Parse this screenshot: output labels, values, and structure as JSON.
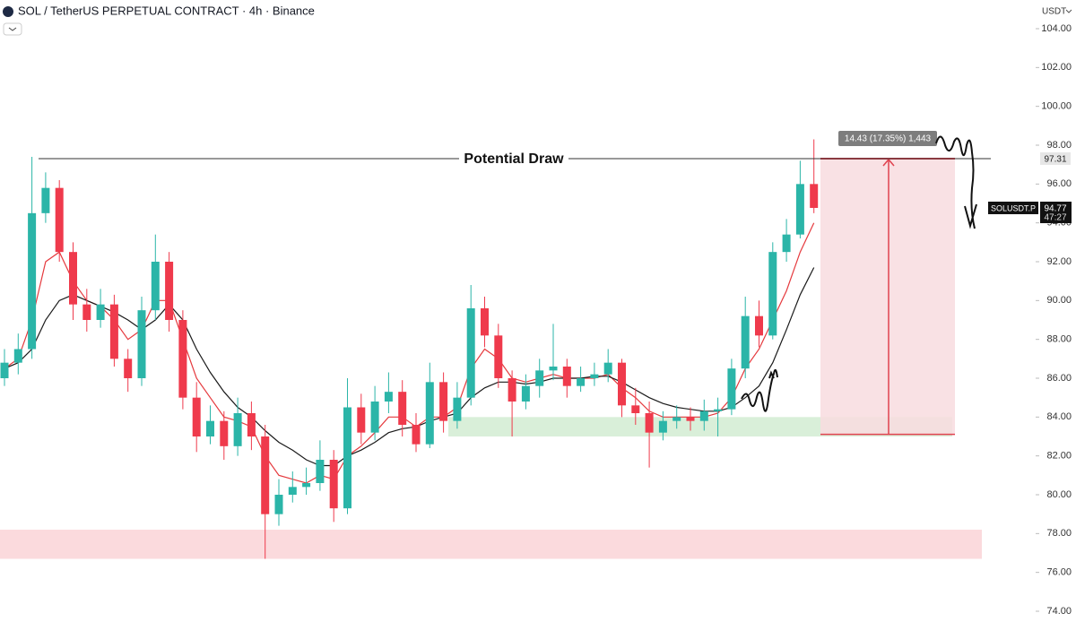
{
  "header": {
    "title": "SOL / TetherUS PERPETUAL CONTRACT · 4h · Binance",
    "currency": "USDT"
  },
  "chart_data": {
    "type": "candlestick",
    "up_color": "#2bb5a8",
    "down_color": "#ef3a4c",
    "ylim": [
      74,
      104
    ],
    "yticks": [
      {
        "value": 104,
        "label": "104.00"
      },
      {
        "value": 102,
        "label": "102.00"
      },
      {
        "value": 100,
        "label": "100.00"
      },
      {
        "value": 98,
        "label": "98.00"
      },
      {
        "value": 96,
        "label": "96.00"
      },
      {
        "value": 94,
        "label": "94.00"
      },
      {
        "value": 92,
        "label": "92.00"
      },
      {
        "value": 90,
        "label": "90.00"
      },
      {
        "value": 88,
        "label": "88.00"
      },
      {
        "value": 86,
        "label": "86.00"
      },
      {
        "value": 84,
        "label": "84.00"
      },
      {
        "value": 82,
        "label": "82.00"
      },
      {
        "value": 80,
        "label": "80.00"
      },
      {
        "value": 78,
        "label": "78.00"
      },
      {
        "value": 76,
        "label": "76.00"
      },
      {
        "value": 74,
        "label": "74.00"
      }
    ],
    "open": [
      86.0,
      86.8,
      87.5,
      94.5,
      95.8,
      92.5,
      89.8,
      89.0,
      89.8,
      87.0,
      86.0,
      89.5,
      92.0,
      89.0,
      85.0,
      83.0,
      83.8,
      82.5,
      84.2,
      83.0,
      79.0,
      80.0,
      80.4,
      80.6,
      81.8,
      79.3,
      84.5,
      83.2,
      84.8,
      85.3,
      83.6,
      82.6,
      85.8,
      83.8,
      85.0,
      89.6,
      88.2,
      86.0,
      84.8,
      85.6,
      86.4,
      86.6,
      85.6,
      86.0,
      86.2,
      86.8,
      84.6,
      84.2,
      83.2,
      83.8,
      84.0,
      83.8,
      84.3,
      84.4,
      86.5,
      89.2,
      88.2,
      92.5,
      93.4,
      96.0
    ],
    "high": [
      87.5,
      88.3,
      97.4,
      96.6,
      96.2,
      93.0,
      90.6,
      90.6,
      90.3,
      87.5,
      90.2,
      93.4,
      92.5,
      89.5,
      85.8,
      84.6,
      84.3,
      85.0,
      84.8,
      83.6,
      80.8,
      81.2,
      81.4,
      82.8,
      82.3,
      86.0,
      85.2,
      85.6,
      86.3,
      85.9,
      84.2,
      86.8,
      86.3,
      85.8,
      90.8,
      90.2,
      88.8,
      86.4,
      86.2,
      87.0,
      88.8,
      87.0,
      86.6,
      86.8,
      87.5,
      87.0,
      85.5,
      84.8,
      84.3,
      84.6,
      84.5,
      84.9,
      85.0,
      87.0,
      90.2,
      90.0,
      93.0,
      94.2,
      97.2,
      98.3
    ],
    "low": [
      85.6,
      86.2,
      87.0,
      94.0,
      92.0,
      89.0,
      88.4,
      88.6,
      86.6,
      85.3,
      85.6,
      89.0,
      88.4,
      84.4,
      82.2,
      82.6,
      81.8,
      82.0,
      82.3,
      76.7,
      78.4,
      79.6,
      80.0,
      80.2,
      78.6,
      79.0,
      82.6,
      82.8,
      84.2,
      83.0,
      82.2,
      82.4,
      83.2,
      83.4,
      84.6,
      87.6,
      85.5,
      83.0,
      84.4,
      85.0,
      85.9,
      85.0,
      85.3,
      85.6,
      85.8,
      84.0,
      83.6,
      81.4,
      82.8,
      83.4,
      83.3,
      83.3,
      83.0,
      84.1,
      86.0,
      87.6,
      88.0,
      92.0,
      93.2,
      94.5
    ],
    "close": [
      86.8,
      87.5,
      94.5,
      95.8,
      92.5,
      89.8,
      89.0,
      89.8,
      87.0,
      86.0,
      89.5,
      92.0,
      89.0,
      85.0,
      83.0,
      83.8,
      82.5,
      84.2,
      83.0,
      79.0,
      80.0,
      80.4,
      80.6,
      81.8,
      79.3,
      84.5,
      83.2,
      84.8,
      85.3,
      83.6,
      82.6,
      85.8,
      83.8,
      85.0,
      89.6,
      88.2,
      86.0,
      84.8,
      85.6,
      86.4,
      86.6,
      85.6,
      86.0,
      86.2,
      86.8,
      84.6,
      84.2,
      83.2,
      83.8,
      84.0,
      83.8,
      84.3,
      84.4,
      86.5,
      89.2,
      88.2,
      92.5,
      93.4,
      96.0,
      94.77
    ],
    "moving_averages": [
      {
        "color": "#e5393d",
        "values": [
          86.5,
          87,
          89,
          92,
          92.5,
          91,
          90,
          89.7,
          89,
          88,
          88.5,
          90,
          90,
          88,
          86,
          85,
          84,
          83.8,
          83.5,
          82,
          81,
          80.8,
          80.6,
          81,
          80.8,
          82,
          82.5,
          83.2,
          84,
          84,
          83.5,
          84,
          84,
          84.5,
          86.5,
          87.5,
          87,
          86,
          85.8,
          86,
          86.2,
          86,
          86,
          86,
          86.2,
          85.5,
          85,
          84.3,
          84,
          84,
          84,
          84,
          84.2,
          85,
          86.5,
          87.5,
          89,
          90.5,
          92.5,
          94
        ]
      },
      {
        "color": "#1a1a1a",
        "values": [
          86.5,
          86.8,
          87.5,
          89,
          90,
          90.3,
          90,
          89.7,
          89.4,
          89,
          88.5,
          89,
          89.8,
          89,
          87.5,
          86.3,
          85.3,
          84.5,
          84,
          83.3,
          82.7,
          82.3,
          81.8,
          81.5,
          81.5,
          82,
          82.3,
          82.7,
          83.2,
          83.4,
          83.5,
          83.8,
          84,
          84.2,
          85,
          85.5,
          85.8,
          85.8,
          85.7,
          85.8,
          86,
          86,
          86,
          86.1,
          86.1,
          85.8,
          85.4,
          85,
          84.7,
          84.5,
          84.4,
          84.3,
          84.3,
          84.5,
          85,
          85.6,
          86.8,
          88.5,
          90.3,
          91.7
        ]
      }
    ],
    "level": {
      "label": "Potential Draw",
      "value": 97.31,
      "value_label": "97.31"
    },
    "last": {
      "symbol": "SOLUSDT.P",
      "value": 94.77,
      "countdown": "47:27"
    },
    "zones": [
      {
        "low": 83.0,
        "high": 84.0,
        "color": "#d9efd9"
      },
      {
        "low": 76.7,
        "high": 78.2,
        "color": "#fbdadd"
      }
    ],
    "measure": {
      "label": "14.43 (17.35%) 1,443",
      "low": 83.11,
      "high": 97.54,
      "color": "#f8dcdf",
      "line_color": "#e0424f"
    }
  }
}
